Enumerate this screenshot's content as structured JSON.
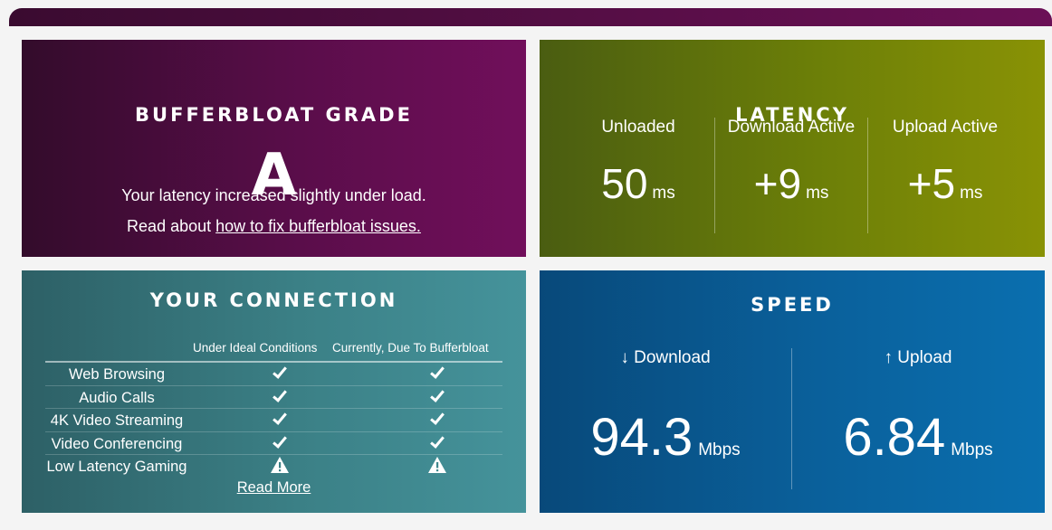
{
  "grade_panel": {
    "title": "BUFFERBLOAT GRADE",
    "grade": "A",
    "message": "Your latency increased slightly under load.",
    "read_prefix": "Read about",
    "read_link": "how to fix bufferbloat issues."
  },
  "latency_panel": {
    "title": "LATENCY",
    "columns": [
      {
        "label": "Unloaded",
        "value": "50",
        "unit": "ms"
      },
      {
        "label": "Download Active",
        "value": "+9",
        "unit": "ms"
      },
      {
        "label": "Upload Active",
        "value": "+5",
        "unit": "ms"
      }
    ]
  },
  "connection_panel": {
    "title": "YOUR CONNECTION",
    "col_ideal": "Under Ideal Conditions",
    "col_current": "Currently, Due To Bufferbloat",
    "rows": [
      {
        "task": "Web Browsing",
        "ideal": "check-icon",
        "current": "check-icon"
      },
      {
        "task": "Audio Calls",
        "ideal": "check-icon",
        "current": "check-icon"
      },
      {
        "task": "4K Video Streaming",
        "ideal": "check-icon",
        "current": "check-icon"
      },
      {
        "task": "Video Conferencing",
        "ideal": "check-icon",
        "current": "check-icon"
      },
      {
        "task": "Low Latency Gaming",
        "ideal": "warning-icon",
        "current": "warning-icon"
      }
    ],
    "read_more": "Read More"
  },
  "speed_panel": {
    "title": "SPEED",
    "download": {
      "label": "↓ Download",
      "value": "94.3",
      "unit": "Mbps"
    },
    "upload": {
      "label": "↑ Upload",
      "value": "6.84",
      "unit": "Mbps"
    }
  },
  "colors": {
    "grade_bg": "#5a0d4a",
    "latency_bg": "#6c7f08",
    "connection_bg": "#3b8086",
    "speed_bg": "#0a609b"
  }
}
